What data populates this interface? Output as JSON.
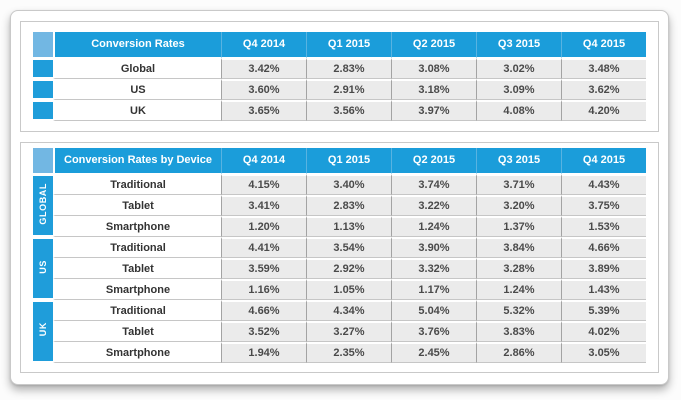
{
  "colors": {
    "header_blue": "#1b9dda",
    "corner_light_blue": "#72b7e3",
    "value_cell_gray": "#ebebeb",
    "text_dark": "#4a4a4a"
  },
  "chart_data": [
    {
      "type": "table",
      "title": "Conversion Rates",
      "columns": [
        "Q4 2014",
        "Q1 2015",
        "Q2 2015",
        "Q3 2015",
        "Q4 2015"
      ],
      "rows": [
        {
          "label": "Global",
          "values": [
            "3.42%",
            "2.83%",
            "3.08%",
            "3.02%",
            "3.48%"
          ]
        },
        {
          "label": "US",
          "values": [
            "3.60%",
            "2.91%",
            "3.18%",
            "3.09%",
            "3.62%"
          ]
        },
        {
          "label": "UK",
          "values": [
            "3.65%",
            "3.56%",
            "3.97%",
            "4.08%",
            "4.20%"
          ]
        }
      ]
    },
    {
      "type": "table",
      "title": "Conversion Rates by Device",
      "columns": [
        "Q4 2014",
        "Q1 2015",
        "Q2 2015",
        "Q3 2015",
        "Q4 2015"
      ],
      "groups": [
        {
          "name": "GLOBAL",
          "rows": [
            {
              "label": "Traditional",
              "values": [
                "4.15%",
                "3.40%",
                "3.74%",
                "3.71%",
                "4.43%"
              ]
            },
            {
              "label": "Tablet",
              "values": [
                "3.41%",
                "2.83%",
                "3.22%",
                "3.20%",
                "3.75%"
              ]
            },
            {
              "label": "Smartphone",
              "values": [
                "1.20%",
                "1.13%",
                "1.24%",
                "1.37%",
                "1.53%"
              ]
            }
          ]
        },
        {
          "name": "US",
          "rows": [
            {
              "label": "Traditional",
              "values": [
                "4.41%",
                "3.54%",
                "3.90%",
                "3.84%",
                "4.66%"
              ]
            },
            {
              "label": "Tablet",
              "values": [
                "3.59%",
                "2.92%",
                "3.32%",
                "3.28%",
                "3.89%"
              ]
            },
            {
              "label": "Smartphone",
              "values": [
                "1.16%",
                "1.05%",
                "1.17%",
                "1.24%",
                "1.43%"
              ]
            }
          ]
        },
        {
          "name": "UK",
          "rows": [
            {
              "label": "Traditional",
              "values": [
                "4.66%",
                "4.34%",
                "5.04%",
                "5.32%",
                "5.39%"
              ]
            },
            {
              "label": "Tablet",
              "values": [
                "3.52%",
                "3.27%",
                "3.76%",
                "3.83%",
                "4.02%"
              ]
            },
            {
              "label": "Smartphone",
              "values": [
                "1.94%",
                "2.35%",
                "2.45%",
                "2.86%",
                "3.05%"
              ]
            }
          ]
        }
      ]
    }
  ]
}
